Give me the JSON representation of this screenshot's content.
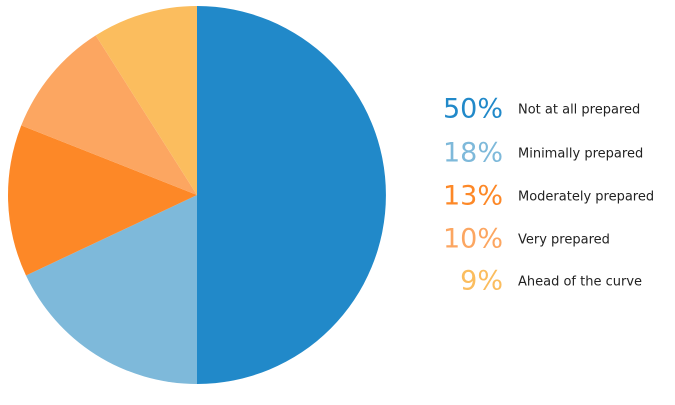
{
  "chart_data": {
    "type": "pie",
    "categories": [
      "Not at all prepared",
      "Minimally prepared",
      "Moderately prepared",
      "Very prepared",
      "Ahead of the curve"
    ],
    "values": [
      50,
      18,
      13,
      10,
      9
    ],
    "value_labels": [
      "50%",
      "18%",
      "13%",
      "10%",
      "9%"
    ],
    "colors": [
      "#2189c9",
      "#7eb9da",
      "#fd8827",
      "#fca661",
      "#fbbd5e"
    ]
  }
}
